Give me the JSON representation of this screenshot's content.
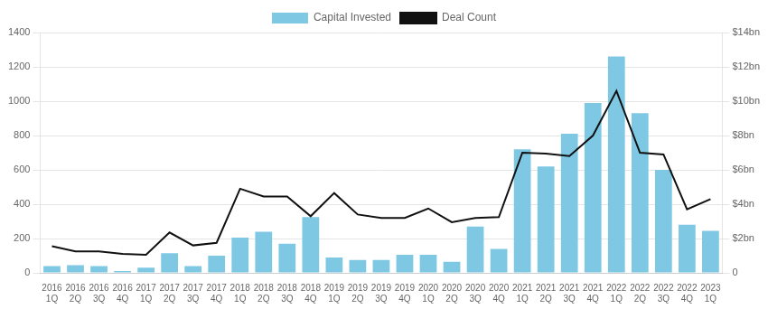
{
  "chart_data": {
    "type": "bar",
    "categories": [
      "2016\n1Q",
      "2016\n2Q",
      "2016\n3Q",
      "2016\n4Q",
      "2017\n1Q",
      "2017\n2Q",
      "2017\n3Q",
      "2017\n4Q",
      "2018\n1Q",
      "2018\n2Q",
      "2018\n3Q",
      "2018\n4Q",
      "2019\n1Q",
      "2019\n2Q",
      "2019\n3Q",
      "2019\n4Q",
      "2020\n1Q",
      "2020\n2Q",
      "2020\n3Q",
      "2020\n4Q",
      "2021\n1Q",
      "2021\n2Q",
      "2021\n3Q",
      "2021\n4Q",
      "2022\n1Q",
      "2022\n2Q",
      "2022\n3Q",
      "2022\n4Q",
      "2023\n1Q"
    ],
    "series": [
      {
        "name": "Capital Invested",
        "type": "bar",
        "color": "#7EC8E3",
        "values": [
          40,
          45,
          40,
          10,
          30,
          115,
          40,
          100,
          205,
          240,
          170,
          325,
          90,
          75,
          75,
          105,
          105,
          65,
          270,
          140,
          720,
          620,
          810,
          990,
          1260,
          930,
          600,
          280,
          245
        ]
      },
      {
        "name": "Deal Count",
        "type": "line",
        "color": "#111111",
        "values": [
          155,
          125,
          125,
          110,
          105,
          235,
          160,
          175,
          490,
          445,
          445,
          330,
          465,
          340,
          320,
          320,
          375,
          295,
          320,
          325,
          700,
          695,
          680,
          800,
          1060,
          700,
          690,
          370,
          430
        ]
      }
    ],
    "ylim": [
      0,
      1400
    ],
    "yticks": [
      0,
      200,
      400,
      600,
      800,
      1000,
      1200,
      1400
    ],
    "y2lim": [
      0,
      14
    ],
    "y2ticks": [
      0,
      {
        "value": 2,
        "label": "$2bn"
      },
      {
        "value": 4,
        "label": "$4bn"
      },
      {
        "value": 6,
        "label": "$6bn"
      },
      {
        "value": 8,
        "label": "$8bn"
      },
      {
        "value": 10,
        "label": "$10bn"
      },
      {
        "value": 12,
        "label": "$12bn"
      },
      {
        "value": 14,
        "label": "$14bn"
      }
    ],
    "grid": true,
    "legend": "top"
  }
}
